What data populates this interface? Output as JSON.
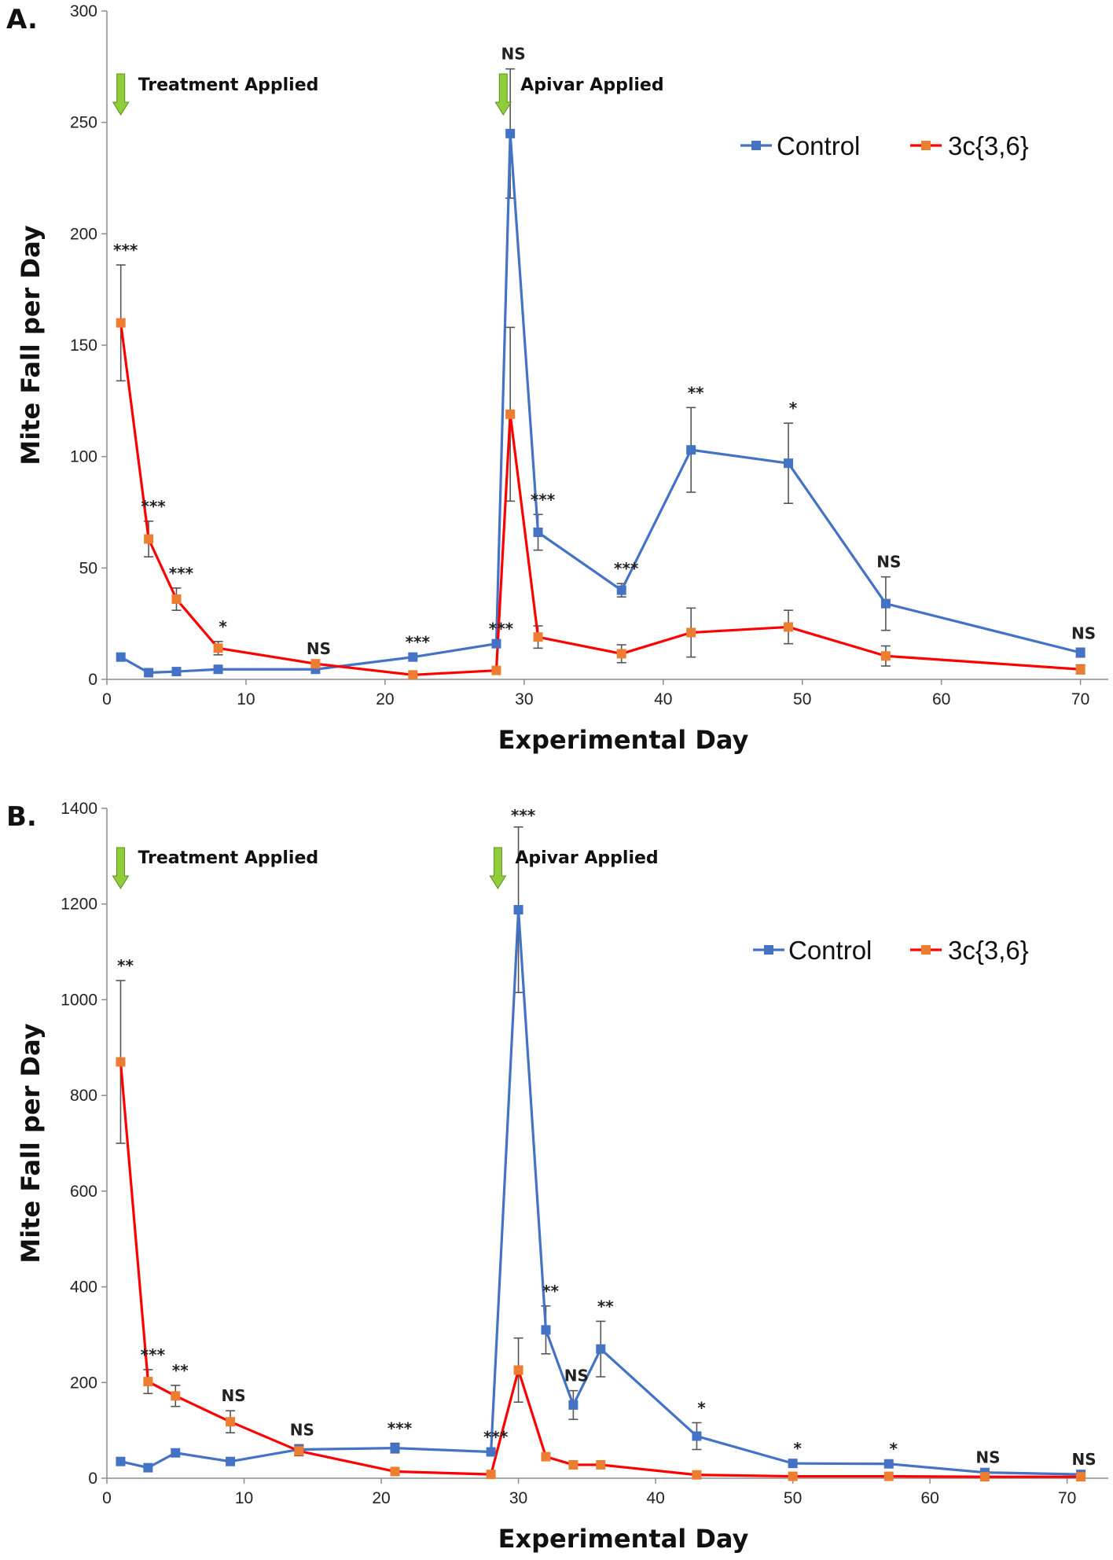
{
  "chart_data": [
    {
      "type": "line",
      "panel_label": "A.",
      "xlabel": "Experimental Day",
      "ylabel": "Mite Fall per Day",
      "xlim": [
        0,
        72
      ],
      "ylim": [
        0,
        300
      ],
      "xticks": [
        0,
        10,
        20,
        30,
        40,
        50,
        60,
        70
      ],
      "yticks": [
        0,
        50,
        100,
        150,
        200,
        250,
        300
      ],
      "legend_position": "top-right",
      "series": [
        {
          "name": "Control",
          "line_color": "#4472c4",
          "marker_color": "#4472c4",
          "x": [
            1,
            3,
            5,
            8,
            15,
            22,
            28,
            29,
            31,
            37,
            42,
            49,
            56,
            70
          ],
          "values": [
            10,
            3,
            3.5,
            4.5,
            4.5,
            10,
            16,
            245,
            66,
            40,
            103,
            97,
            34,
            12
          ],
          "errors": [
            0,
            0,
            0,
            0,
            0,
            0,
            0,
            29,
            8,
            3,
            19,
            18,
            12,
            2
          ]
        },
        {
          "name": "3c{3,6}",
          "line_color": "#ff0000",
          "marker_color": "#ed7d31",
          "x": [
            1,
            3,
            5,
            8,
            15,
            22,
            28,
            29,
            31,
            37,
            42,
            49,
            56,
            70
          ],
          "values": [
            160,
            63,
            36,
            14,
            7,
            2,
            4,
            119,
            19,
            11.5,
            21,
            23.5,
            10.5,
            4.5
          ],
          "errors": [
            26,
            8,
            5,
            3,
            0,
            0,
            0,
            39,
            5,
            4,
            11,
            7.5,
            4.5,
            2
          ]
        }
      ],
      "significance": [
        {
          "x": 1,
          "label": "***"
        },
        {
          "x": 3,
          "label": "***"
        },
        {
          "x": 5,
          "label": "***"
        },
        {
          "x": 8,
          "label": "*"
        },
        {
          "x": 15,
          "label": "NS"
        },
        {
          "x": 22,
          "label": "***"
        },
        {
          "x": 28,
          "label": "***"
        },
        {
          "x": 29,
          "label": "NS"
        },
        {
          "x": 31,
          "label": "***"
        },
        {
          "x": 37,
          "label": "***"
        },
        {
          "x": 42,
          "label": "**"
        },
        {
          "x": 49,
          "label": "*"
        },
        {
          "x": 56,
          "label": "NS"
        },
        {
          "x": 70,
          "label": "NS"
        }
      ],
      "annotations": [
        {
          "x": 1,
          "label": "Treatment Applied",
          "arrow_color": "#8fce3a"
        },
        {
          "x": 28.5,
          "label": "Apivar Applied",
          "arrow_color": "#8fce3a"
        }
      ]
    },
    {
      "type": "line",
      "panel_label": "B.",
      "xlabel": "Experimental Day",
      "ylabel": "Mite Fall per Day",
      "xlim": [
        0,
        73
      ],
      "ylim": [
        0,
        1400
      ],
      "xticks": [
        0,
        10,
        20,
        30,
        40,
        50,
        60,
        70
      ],
      "yticks": [
        0,
        200,
        400,
        600,
        800,
        1000,
        1200,
        1400
      ],
      "legend_position": "top-right",
      "series": [
        {
          "name": "Control",
          "line_color": "#4472c4",
          "marker_color": "#4472c4",
          "x": [
            1,
            3,
            5,
            9,
            14,
            21,
            28,
            30,
            32,
            34,
            36,
            43,
            50,
            57,
            64,
            71
          ],
          "values": [
            35,
            22,
            53,
            35,
            60,
            63,
            55,
            1188,
            310,
            153,
            270,
            88,
            31,
            30,
            12,
            8
          ],
          "errors": [
            0,
            0,
            0,
            0,
            10,
            10,
            0,
            173,
            50,
            30,
            58,
            28,
            0,
            0,
            0,
            0
          ]
        },
        {
          "name": "3c{3,6}",
          "line_color": "#ff0000",
          "marker_color": "#ed7d31",
          "x": [
            1,
            3,
            5,
            9,
            14,
            21,
            28,
            30,
            32,
            34,
            36,
            43,
            50,
            57,
            64,
            71
          ],
          "values": [
            870,
            202,
            172,
            118,
            57,
            14,
            8,
            226,
            45,
            28,
            28,
            7,
            4,
            4,
            3,
            3
          ],
          "errors": [
            170,
            25,
            22,
            23,
            10,
            0,
            0,
            67,
            0,
            0,
            0,
            0,
            0,
            0,
            0,
            0
          ]
        }
      ],
      "significance": [
        {
          "x": 1,
          "label": "**"
        },
        {
          "x": 3,
          "label": "***"
        },
        {
          "x": 5,
          "label": "**"
        },
        {
          "x": 9,
          "label": "NS"
        },
        {
          "x": 14,
          "label": "NS"
        },
        {
          "x": 21,
          "label": "***"
        },
        {
          "x": 28,
          "label": "***"
        },
        {
          "x": 30,
          "label": "***"
        },
        {
          "x": 32,
          "label": "**"
        },
        {
          "x": 34,
          "label": "NS"
        },
        {
          "x": 36,
          "label": "**"
        },
        {
          "x": 43,
          "label": "*"
        },
        {
          "x": 50,
          "label": "*"
        },
        {
          "x": 57,
          "label": "*"
        },
        {
          "x": 64,
          "label": "NS"
        },
        {
          "x": 71,
          "label": "NS"
        }
      ],
      "annotations": [
        {
          "x": 1,
          "label": "Treatment Applied",
          "arrow_color": "#8fce3a"
        },
        {
          "x": 28.5,
          "label": "Apivar Applied",
          "arrow_color": "#8fce3a"
        }
      ]
    }
  ]
}
